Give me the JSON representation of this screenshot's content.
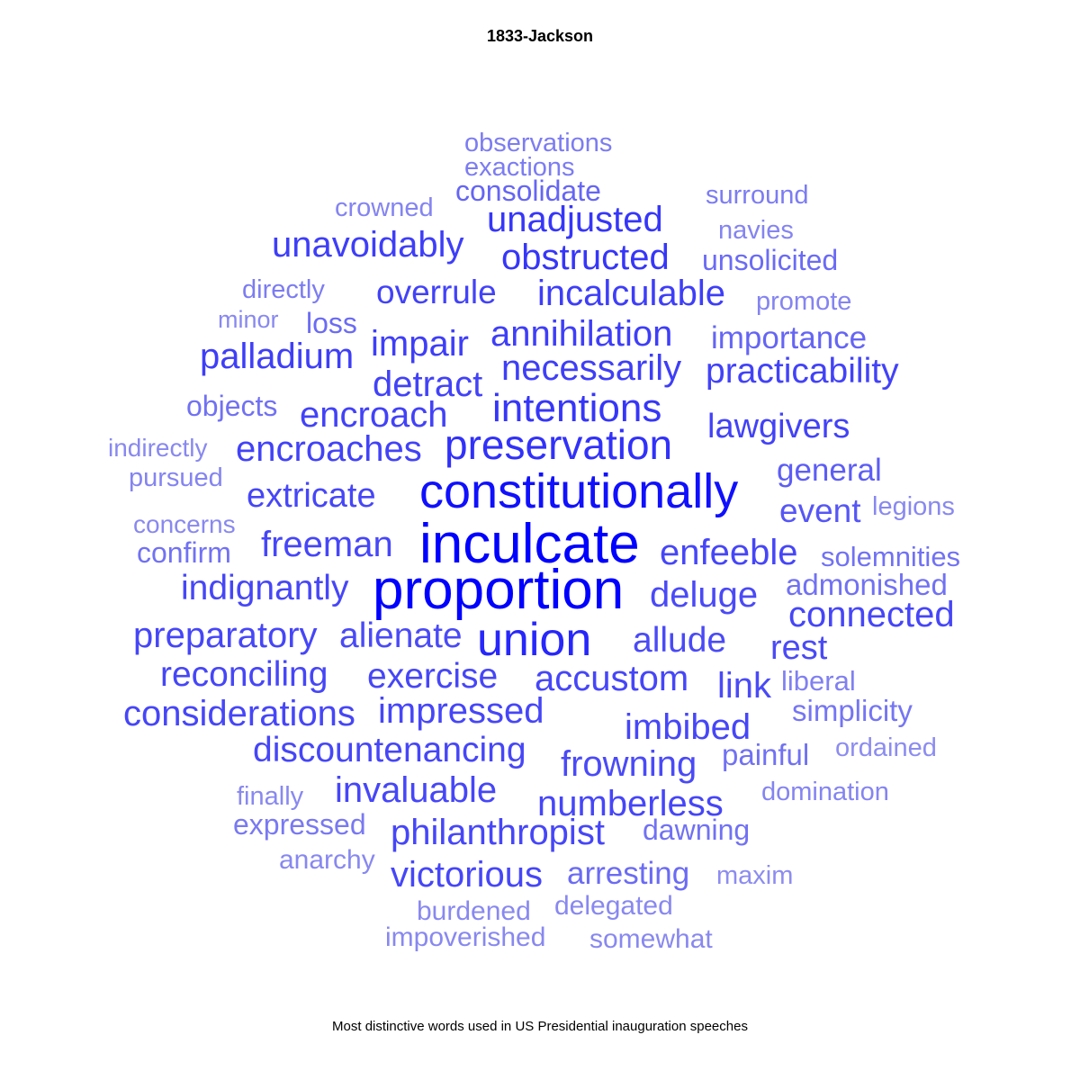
{
  "title": "1833-Jackson",
  "caption": "Most distinctive words used in US Presidential inauguration speeches",
  "chart_data": {
    "type": "wordcloud",
    "title": "1833-Jackson",
    "caption": "Most distinctive words used in US Presidential inauguration speeches",
    "color_scale": {
      "low": "#8c8cf0",
      "high": "#0000ff"
    },
    "words": [
      {
        "text": "inculcate",
        "weight": 1.0
      },
      {
        "text": "proportion",
        "weight": 1.0
      },
      {
        "text": "constitutionally",
        "weight": 0.92
      },
      {
        "text": "union",
        "weight": 0.8
      },
      {
        "text": "preservation",
        "weight": 0.75
      },
      {
        "text": "intentions",
        "weight": 0.72
      },
      {
        "text": "unadjusted",
        "weight": 0.72
      },
      {
        "text": "obstructed",
        "weight": 0.72
      },
      {
        "text": "unavoidably",
        "weight": 0.68
      },
      {
        "text": "necessarily",
        "weight": 0.68
      },
      {
        "text": "incalculable",
        "weight": 0.68
      },
      {
        "text": "annihilation",
        "weight": 0.68
      },
      {
        "text": "palladium",
        "weight": 0.68
      },
      {
        "text": "impair",
        "weight": 0.68
      },
      {
        "text": "overrule",
        "weight": 0.66
      },
      {
        "text": "practicability",
        "weight": 0.66
      },
      {
        "text": "lawgivers",
        "weight": 0.66
      },
      {
        "text": "encroaches",
        "weight": 0.66
      },
      {
        "text": "encroach",
        "weight": 0.66
      },
      {
        "text": "detract",
        "weight": 0.66
      },
      {
        "text": "extricate",
        "weight": 0.64
      },
      {
        "text": "freeman",
        "weight": 0.64
      },
      {
        "text": "enfeeble",
        "weight": 0.64
      },
      {
        "text": "indignantly",
        "weight": 0.64
      },
      {
        "text": "deluge",
        "weight": 0.62
      },
      {
        "text": "connected",
        "weight": 0.64
      },
      {
        "text": "preparatory",
        "weight": 0.64
      },
      {
        "text": "alienate",
        "weight": 0.62
      },
      {
        "text": "allude",
        "weight": 0.62
      },
      {
        "text": "rest",
        "weight": 0.62
      },
      {
        "text": "reconciling",
        "weight": 0.64
      },
      {
        "text": "exercise",
        "weight": 0.64
      },
      {
        "text": "accustom",
        "weight": 0.64
      },
      {
        "text": "link",
        "weight": 0.62
      },
      {
        "text": "considerations",
        "weight": 0.64
      },
      {
        "text": "impressed",
        "weight": 0.64
      },
      {
        "text": "imbibed",
        "weight": 0.64
      },
      {
        "text": "discountenancing",
        "weight": 0.64
      },
      {
        "text": "frowning",
        "weight": 0.62
      },
      {
        "text": "invaluable",
        "weight": 0.64
      },
      {
        "text": "numberless",
        "weight": 0.64
      },
      {
        "text": "philanthropist",
        "weight": 0.64
      },
      {
        "text": "victorious",
        "weight": 0.64
      },
      {
        "text": "event",
        "weight": 0.56
      },
      {
        "text": "general",
        "weight": 0.52
      },
      {
        "text": "importance",
        "weight": 0.48
      },
      {
        "text": "loss",
        "weight": 0.45
      },
      {
        "text": "consolidate",
        "weight": 0.48
      },
      {
        "text": "unsolicited",
        "weight": 0.45
      },
      {
        "text": "arresting",
        "weight": 0.45
      },
      {
        "text": "dawning",
        "weight": 0.42
      },
      {
        "text": "painful",
        "weight": 0.42
      },
      {
        "text": "objects",
        "weight": 0.42
      },
      {
        "text": "confirm",
        "weight": 0.42
      },
      {
        "text": "solemnities",
        "weight": 0.42
      },
      {
        "text": "admonished",
        "weight": 0.42
      },
      {
        "text": "simplicity",
        "weight": 0.4
      },
      {
        "text": "expressed",
        "weight": 0.38
      },
      {
        "text": "observations",
        "weight": 0.36
      },
      {
        "text": "exactions",
        "weight": 0.36
      },
      {
        "text": "crowned",
        "weight": 0.32
      },
      {
        "text": "surround",
        "weight": 0.36
      },
      {
        "text": "navies",
        "weight": 0.32
      },
      {
        "text": "directly",
        "weight": 0.36
      },
      {
        "text": "promote",
        "weight": 0.32
      },
      {
        "text": "minor",
        "weight": 0.3
      },
      {
        "text": "indirectly",
        "weight": 0.3
      },
      {
        "text": "pursued",
        "weight": 0.32
      },
      {
        "text": "concerns",
        "weight": 0.3
      },
      {
        "text": "legions",
        "weight": 0.3
      },
      {
        "text": "liberal",
        "weight": 0.34
      },
      {
        "text": "ordained",
        "weight": 0.28
      },
      {
        "text": "domination",
        "weight": 0.32
      },
      {
        "text": "finally",
        "weight": 0.3
      },
      {
        "text": "anarchy",
        "weight": 0.3
      },
      {
        "text": "maxim",
        "weight": 0.28
      },
      {
        "text": "burdened",
        "weight": 0.3
      },
      {
        "text": "delegated",
        "weight": 0.3
      },
      {
        "text": "impoverished",
        "weight": 0.3
      },
      {
        "text": "somewhat",
        "weight": 0.3
      }
    ]
  }
}
